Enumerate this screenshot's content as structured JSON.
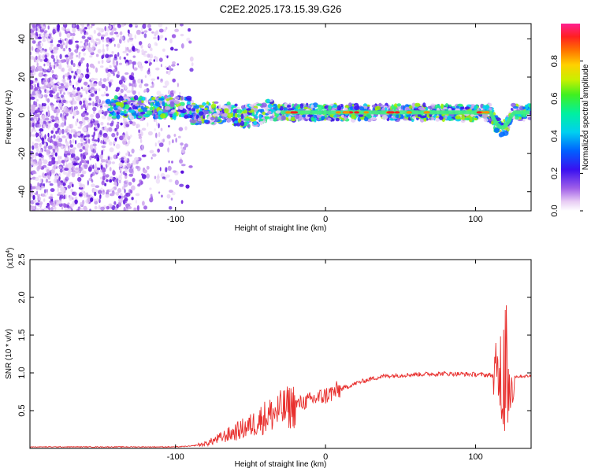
{
  "title": "C2E2.2025.173.15.39.G26",
  "chart_data": [
    {
      "type": "heatmap",
      "xlabel": "Height of straight line (km)",
      "ylabel": "Frequency (Hz)",
      "xlim": [
        -197,
        137
      ],
      "ylim": [
        -50,
        48
      ],
      "xticks": [
        -100,
        0,
        100
      ],
      "yticks": [
        -40,
        -20,
        0,
        20,
        40
      ],
      "colorbar": {
        "label": "Normalized spectral amplitude",
        "range": [
          0,
          1
        ],
        "ticks": [
          0.0,
          0.2,
          0.4,
          0.6,
          0.8
        ]
      }
    },
    {
      "type": "line",
      "xlabel": "Height of straight line (km)",
      "ylabel": "SNR (10 * v/v)",
      "yscale_label": "(x10",
      "yscale_exp": "4",
      "yscale_close": ")",
      "xlim": [
        -197,
        137
      ],
      "ylim": [
        0,
        2.5
      ],
      "xticks": [
        -100,
        0,
        100
      ],
      "yticks": [
        0.5,
        1.0,
        1.5,
        2.0,
        2.5
      ],
      "line_color": "#e8302e",
      "profile_points": [
        {
          "x": -197,
          "y": 0.02
        },
        {
          "x": -100,
          "y": 0.02
        },
        {
          "x": -90,
          "y": 0.03
        },
        {
          "x": -80,
          "y": 0.06
        },
        {
          "x": -70,
          "y": 0.14
        },
        {
          "x": -60,
          "y": 0.22
        },
        {
          "x": -50,
          "y": 0.3
        },
        {
          "x": -40,
          "y": 0.42
        },
        {
          "x": -30,
          "y": 0.5
        },
        {
          "x": -20,
          "y": 0.58
        },
        {
          "x": -10,
          "y": 0.64
        },
        {
          "x": 0,
          "y": 0.7
        },
        {
          "x": 10,
          "y": 0.78
        },
        {
          "x": 20,
          "y": 0.86
        },
        {
          "x": 30,
          "y": 0.92
        },
        {
          "x": 40,
          "y": 0.96
        },
        {
          "x": 60,
          "y": 0.98
        },
        {
          "x": 80,
          "y": 0.99
        },
        {
          "x": 100,
          "y": 0.98
        },
        {
          "x": 110,
          "y": 0.97
        },
        {
          "x": 115,
          "y": 0.95
        },
        {
          "x": 120,
          "y": 0.6
        },
        {
          "x": 125,
          "y": 0.95
        },
        {
          "x": 137,
          "y": 0.96
        }
      ]
    }
  ]
}
